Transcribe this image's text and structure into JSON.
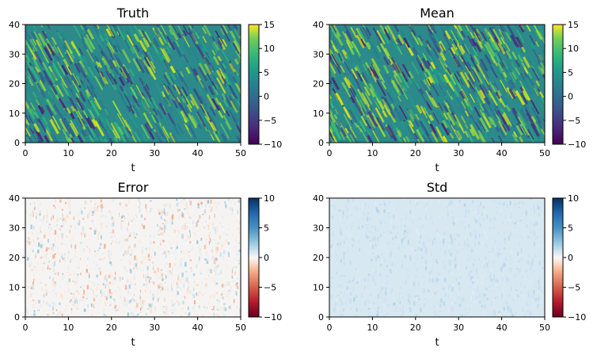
{
  "chart_data": [
    {
      "type": "heatmap",
      "title": "Truth",
      "xlabel": "t",
      "ylabel": "",
      "xlim": [
        0,
        50
      ],
      "ylim": [
        0,
        40
      ],
      "xticks": [
        "0",
        "10",
        "20",
        "30",
        "40",
        "50"
      ],
      "yticks": [
        "0",
        "10",
        "20",
        "30",
        "40"
      ],
      "colormap": "viridis",
      "clim": [
        -10,
        15
      ],
      "colorbar_ticks": [
        "−10",
        "−5",
        "0",
        "5",
        "10",
        "15"
      ],
      "pattern": "Lorenz-96 style diagonal traveling waves; values roughly -5 to 12"
    },
    {
      "type": "heatmap",
      "title": "Mean",
      "xlabel": "t",
      "ylabel": "",
      "xlim": [
        0,
        50
      ],
      "ylim": [
        0,
        40
      ],
      "xticks": [
        "0",
        "10",
        "20",
        "30",
        "40",
        "50"
      ],
      "yticks": [
        "0",
        "10",
        "20",
        "30",
        "40"
      ],
      "colormap": "viridis",
      "clim": [
        -10,
        15
      ],
      "colorbar_ticks": [
        "−10",
        "−5",
        "0",
        "5",
        "10",
        "15"
      ],
      "pattern": "nearly identical to Truth"
    },
    {
      "type": "heatmap",
      "title": "Error",
      "xlabel": "t",
      "ylabel": "",
      "xlim": [
        0,
        50
      ],
      "ylim": [
        0,
        40
      ],
      "xticks": [
        "0",
        "10",
        "20",
        "30",
        "40",
        "50"
      ],
      "yticks": [
        "0",
        "10",
        "20",
        "30",
        "40"
      ],
      "colormap": "RdBu",
      "clim": [
        -10,
        10
      ],
      "colorbar_ticks": [
        "−10",
        "−5",
        "0",
        "5",
        "10"
      ],
      "pattern": "small noisy values near 0, roughly -3 to 3"
    },
    {
      "type": "heatmap",
      "title": "Std",
      "xlabel": "t",
      "ylabel": "",
      "xlim": [
        0,
        50
      ],
      "ylim": [
        0,
        40
      ],
      "xticks": [
        "0",
        "10",
        "20",
        "30",
        "40",
        "50"
      ],
      "yticks": [
        "0",
        "10",
        "20",
        "30",
        "40"
      ],
      "colormap": "RdBu",
      "clim": [
        -10,
        10
      ],
      "colorbar_ticks": [
        "−10",
        "−5",
        "0",
        "5",
        "10"
      ],
      "pattern": "uniform small positive values around 1.5 to 2.5"
    }
  ]
}
